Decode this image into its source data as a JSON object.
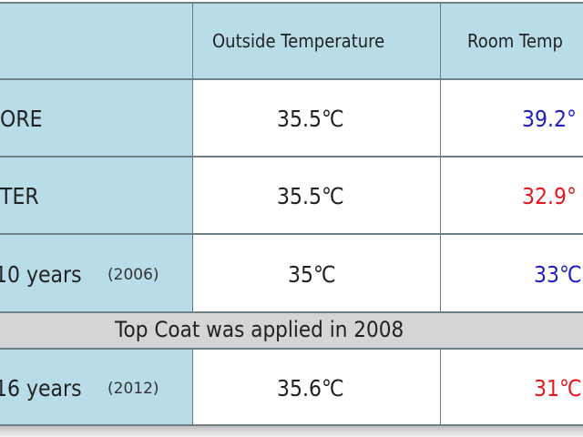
{
  "table": {
    "header": {
      "col2": "Outside Temperature",
      "col3": "Room Temp"
    },
    "rows": [
      {
        "label": "ORE",
        "label_year": "",
        "outside": "35.5℃",
        "room": "39.2°",
        "room_color": "#2121c4"
      },
      {
        "label": "TER",
        "label_year": "",
        "outside": "35.5℃",
        "room": "32.9°",
        "room_color": "#e3191e"
      },
      {
        "label": "10 years",
        "label_year": "(2006)",
        "outside": "35℃",
        "room": "33℃",
        "room_color": "#2121c4"
      },
      {
        "label": "16 years",
        "label_year": "(2012)",
        "outside": "35.6℃",
        "room": "31℃",
        "room_color": "#e3191e"
      }
    ],
    "band": "Top Coat was applied in 2008"
  },
  "colors": {
    "label_bg": "#b8dde9",
    "band_bg": "#d5d5d5",
    "blue": "#2121c4",
    "red": "#e3191e"
  }
}
